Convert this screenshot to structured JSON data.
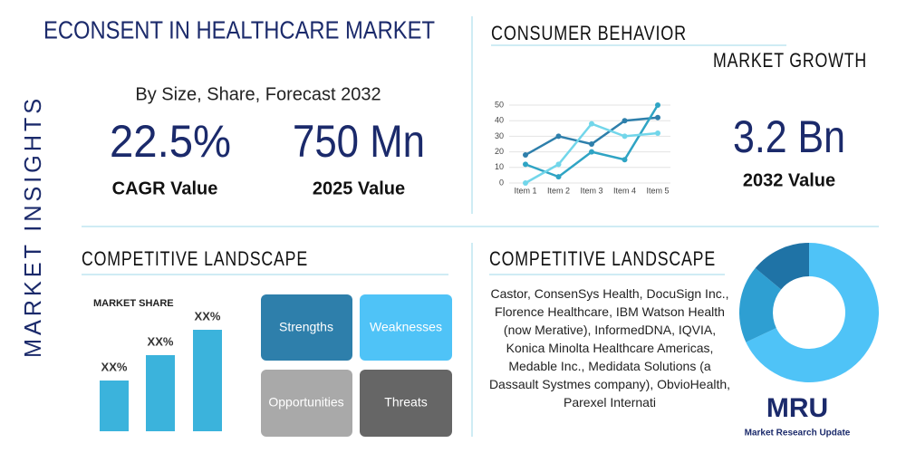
{
  "header": {
    "title": "ECONSENT IN HEALTHCARE MARKET",
    "side_label": "MARKET INSIGHTS",
    "subtitle": "By Size, Share, Forecast 2032"
  },
  "stats": [
    {
      "value": "22.5%",
      "label": "CAGR Value"
    },
    {
      "value": "750 Mn",
      "label": "2025 Value"
    },
    {
      "value": "3.2 Bn",
      "label": "2032 Value"
    }
  ],
  "consumer": {
    "title": "CONSUMER BEHAVIOR",
    "subtitle": "MARKET GROWTH"
  },
  "chart_data": [
    {
      "type": "line",
      "categories": [
        "Item 1",
        "Item 2",
        "Item 3",
        "Item 4",
        "Item 5"
      ],
      "series": [
        {
          "color": "#2e7fab",
          "values": [
            18,
            30,
            25,
            40,
            42
          ]
        },
        {
          "color": "#2fa4c4",
          "values": [
            12,
            4,
            20,
            15,
            50
          ]
        },
        {
          "color": "#72d6ea",
          "values": [
            0,
            12,
            38,
            30,
            32
          ]
        }
      ],
      "ylim": [
        0,
        50
      ],
      "yticks": [
        0,
        10,
        20,
        30,
        40,
        50
      ]
    },
    {
      "type": "bar",
      "title": "MARKET SHARE",
      "values": [
        2,
        3,
        4
      ],
      "value_labels": [
        "XX%",
        "XX%",
        "XX%"
      ],
      "color": "#3bb3dc"
    },
    {
      "type": "pie",
      "values": [
        68,
        18,
        14
      ],
      "colors": [
        "#4fc3f7",
        "#2e9fd2",
        "#1f73a6"
      ]
    }
  ],
  "competitive": {
    "title": "COMPETITIVE LANDSCAPE",
    "text": "Castor, ConsenSys Health, DocuSign Inc., Florence Healthcare, IBM Watson Health (now Merative), InformedDNA, IQVIA, Konica Minolta Healthcare Americas, Medable Inc., Medidata Solutions (a Dassault Systmes company), ObvioHealth, Parexel Internati"
  },
  "swot": {
    "title": "COMPETITIVE LANDSCAPE",
    "cells": [
      "Strengths",
      "Weaknesses",
      "Opportunities",
      "Threats"
    ]
  },
  "logo": {
    "mark": "MRU",
    "text": "Market Research Update"
  }
}
